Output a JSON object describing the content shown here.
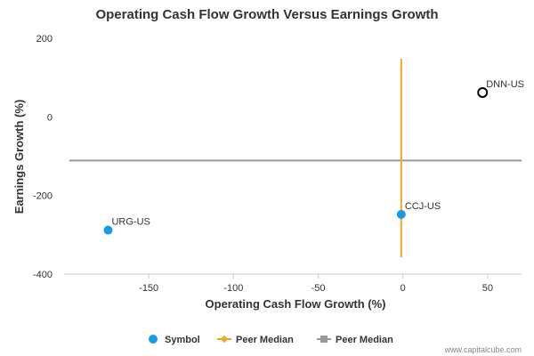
{
  "chart_data": {
    "type": "scatter",
    "title": "Operating Cash Flow Growth Versus Earnings Growth",
    "xlabel": "Operating Cash Flow Growth (%)",
    "ylabel": "Earnings Growth (%)",
    "xlim": [
      -200,
      70
    ],
    "ylim": [
      -400,
      200
    ],
    "x_ticks": [
      -150,
      -100,
      -50,
      0,
      50
    ],
    "y_ticks": [
      200,
      0,
      -200,
      -400
    ],
    "points": [
      {
        "label": "DNN-US",
        "x": 47,
        "y": 62,
        "style": "open"
      },
      {
        "label": "CCJ-US",
        "x": -1,
        "y": -248,
        "style": "filled"
      },
      {
        "label": "URG-US",
        "x": -174,
        "y": -288,
        "style": "filled"
      }
    ],
    "peer_median_x": -1,
    "peer_median_y": -111,
    "legend": [
      {
        "label": "Symbol",
        "color": "#1a9be8",
        "marker": "circle"
      },
      {
        "label": "Peer Median",
        "color": "#f5a623",
        "marker": "diamond"
      },
      {
        "label": "Peer Median",
        "color": "#999999",
        "marker": "square"
      }
    ],
    "colors": {
      "symbol": "#1a9be8",
      "median_x": "#f5a623",
      "median_y": "#999999",
      "open_marker": "#000000"
    }
  },
  "credit": "www.capitalcube.com"
}
